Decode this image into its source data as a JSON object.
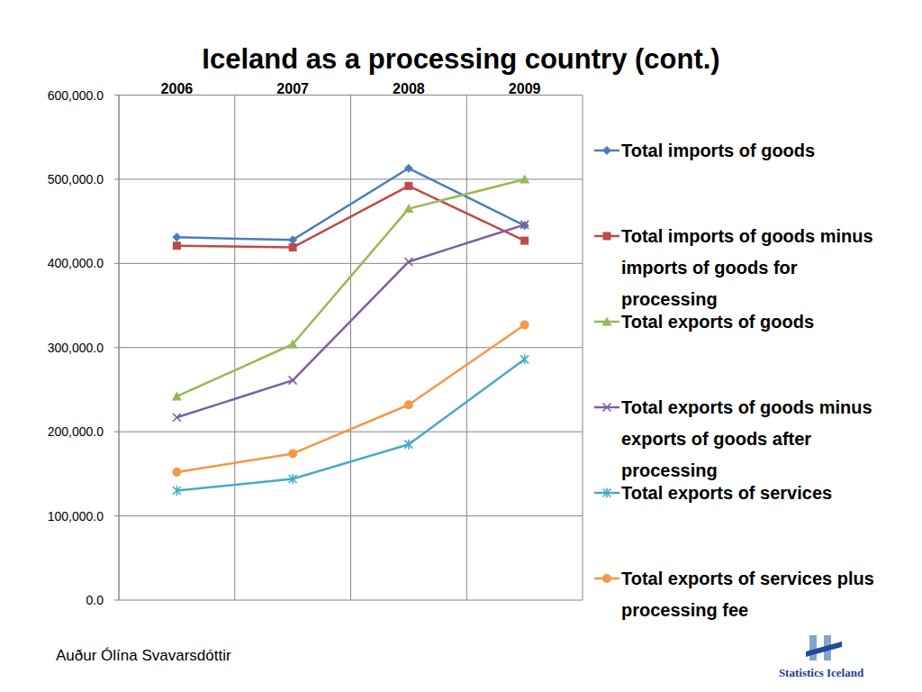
{
  "chart_data": {
    "type": "line",
    "title": "Iceland as a processing country (cont.)",
    "categories": [
      "2006",
      "2007",
      "2008",
      "2009"
    ],
    "series": [
      {
        "name": "Total imports of goods",
        "color": "#4a7ebb",
        "marker": "diamond",
        "values": [
          431000,
          428000,
          513000,
          445000
        ]
      },
      {
        "name": "Total imports of goods minus imports of goods for processing",
        "color": "#be4b48",
        "marker": "square",
        "values": [
          421000,
          419000,
          492000,
          427000
        ]
      },
      {
        "name": "Total exports of goods",
        "color": "#98b954",
        "marker": "triangle",
        "values": [
          242000,
          304000,
          465000,
          500000
        ]
      },
      {
        "name": "Total exports of goods minus exports of goods after processing",
        "color": "#7d60a0",
        "marker": "x",
        "values": [
          217000,
          261000,
          402000,
          446000
        ]
      },
      {
        "name": "Total exports of services",
        "color": "#46aac5",
        "marker": "star",
        "values": [
          130000,
          144000,
          185000,
          286000
        ]
      },
      {
        "name": "Total exports of services plus processing fee",
        "color": "#f79646",
        "marker": "circle",
        "values": [
          152000,
          174000,
          232000,
          327000
        ]
      }
    ],
    "ylim": [
      0,
      600000
    ],
    "yticks": [
      {
        "value": 0,
        "label": "0.0"
      },
      {
        "value": 100000,
        "label": "100,000.0"
      },
      {
        "value": 200000,
        "label": "200,000.0"
      },
      {
        "value": 300000,
        "label": "300,000.0"
      },
      {
        "value": 400000,
        "label": "400,000.0"
      },
      {
        "value": 500000,
        "label": "500,000.0"
      },
      {
        "value": 600000,
        "label": "600,000.0"
      }
    ],
    "grid": true,
    "legend": "right"
  },
  "footer": {
    "author": "Auður Ólína Svavarsdóttir",
    "logo": "Statistics Iceland"
  }
}
